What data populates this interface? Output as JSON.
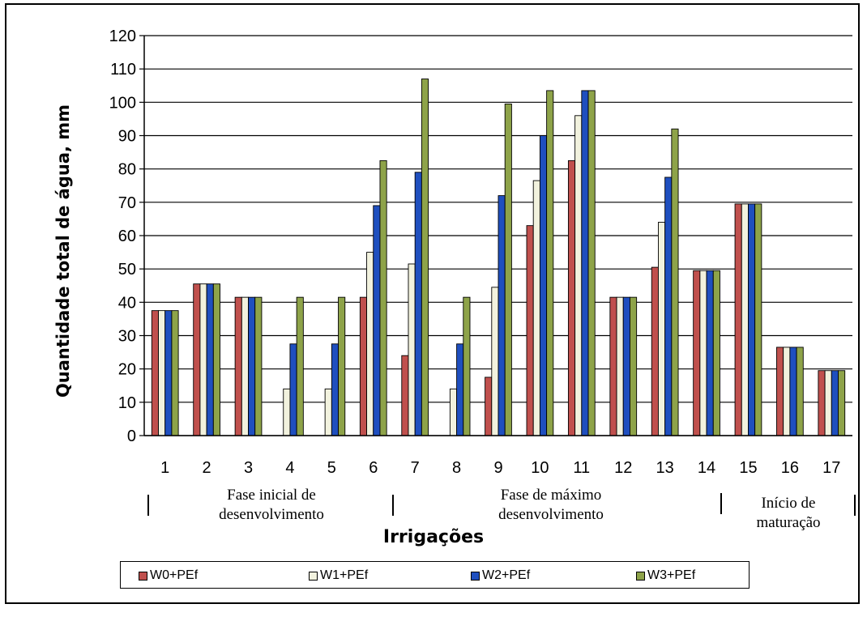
{
  "chart_data": {
    "type": "bar",
    "title": "",
    "xlabel": "Irrigações",
    "ylabel": "Quantidade total de água, mm",
    "ylim": [
      0,
      120
    ],
    "yticks": [
      0,
      10,
      20,
      30,
      40,
      50,
      60,
      70,
      80,
      90,
      100,
      110,
      120
    ],
    "grid": true,
    "legend_position": "bottom",
    "categories": [
      "1",
      "2",
      "3",
      "4",
      "5",
      "6",
      "7",
      "8",
      "9",
      "10",
      "11",
      "12",
      "13",
      "14",
      "15",
      "16",
      "17"
    ],
    "series": [
      {
        "name": "W0+PEf",
        "color": "#c0504d",
        "values": [
          37.5,
          45.5,
          41.5,
          0,
          0,
          41.5,
          24,
          0,
          17.5,
          63,
          82.5,
          41.5,
          50.5,
          49.5,
          69.5,
          26.5,
          19.5
        ]
      },
      {
        "name": "W1+PEf",
        "color": "#f2f2de",
        "values": [
          37.5,
          45.5,
          41.5,
          14,
          14,
          55,
          51.5,
          14,
          44.5,
          76.5,
          96,
          41.5,
          64,
          49.5,
          69.5,
          26.5,
          19.5
        ]
      },
      {
        "name": "W2+PEf",
        "color": "#1f4fbf",
        "values": [
          37.5,
          45.5,
          41.5,
          27.5,
          27.5,
          69,
          79,
          27.5,
          72,
          90,
          103.5,
          41.5,
          77.5,
          49.5,
          69.5,
          26.5,
          19.5
        ]
      },
      {
        "name": "W3+PEf",
        "color": "#8ea349",
        "values": [
          37.5,
          45.5,
          41.5,
          41.5,
          41.5,
          82.5,
          107,
          41.5,
          99.5,
          103.5,
          103.5,
          41.5,
          92,
          49.5,
          69.5,
          26.5,
          19.5
        ]
      }
    ],
    "phases": [
      {
        "label_line1": "Fase inicial de",
        "label_line2": "desenvolvimento",
        "from_category": "1",
        "to_category": "6"
      },
      {
        "label_line1": "Fase de máximo",
        "label_line2": "desenvolvimento",
        "from_category": "7",
        "to_category": "14"
      },
      {
        "label_line1": "Início de",
        "label_line2": "maturação",
        "from_category": "15",
        "to_category": "17"
      }
    ]
  }
}
